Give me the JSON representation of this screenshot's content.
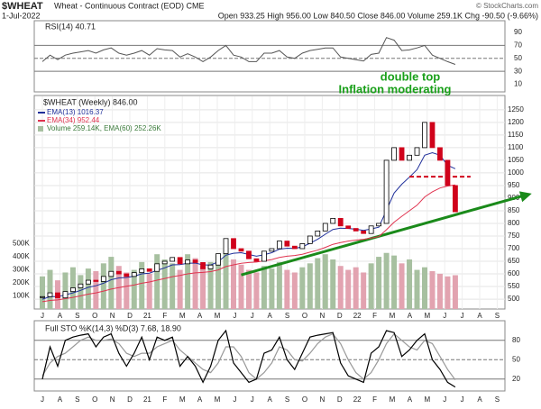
{
  "header": {
    "symbol": "$WHEAT",
    "name": "Wheat - Continuous Contract (EOD) CME",
    "date": "1-Jul-2022",
    "quote": "Open 933.25 High 956.00 Low 840.50 Close 846.00 Volume 259.1K Chg -90.50 (-9.66%)",
    "credit": "© StockCharts.com"
  },
  "chart_data": [
    {
      "type": "line",
      "legend": "RSI(14) 40.71",
      "color": "#555555",
      "values": [
        45,
        55,
        48,
        55,
        58,
        60,
        62,
        58,
        63,
        66,
        58,
        55,
        58,
        62,
        55,
        65,
        63,
        62,
        52,
        57,
        52,
        45,
        52,
        62,
        70,
        55,
        52,
        45,
        45,
        58,
        58,
        62,
        52,
        50,
        58,
        62,
        64,
        66,
        66,
        52,
        50,
        48,
        46,
        56,
        58,
        82,
        78,
        62,
        63,
        66,
        70,
        55,
        50,
        45,
        40.71
      ],
      "ylim": [
        -1,
        108
      ],
      "yticks": [
        10,
        30,
        50,
        70,
        90
      ],
      "levels": [
        30,
        50,
        70
      ]
    },
    {
      "type": "candlestick",
      "legend": "$WHEAT (Weekly) 846.00",
      "up_color": "#000000",
      "down_color": "#d0021b",
      "close": [
        510,
        525,
        505,
        530,
        545,
        560,
        575,
        570,
        590,
        610,
        600,
        590,
        605,
        620,
        610,
        640,
        650,
        665,
        640,
        655,
        645,
        620,
        635,
        680,
        740,
        700,
        690,
        660,
        650,
        690,
        700,
        730,
        710,
        700,
        720,
        750,
        770,
        800,
        820,
        790,
        780,
        770,
        760,
        790,
        800,
        1050,
        1100,
        1050,
        1070,
        1100,
        1200,
        1100,
        1050,
        950,
        846
      ],
      "ema": [
        {
          "name": "EMA(13) 1016.37",
          "color": "#1f2f9a",
          "values": [
            500,
            510,
            510,
            517,
            525,
            535,
            547,
            553,
            563,
            577,
            584,
            586,
            591,
            600,
            603,
            614,
            624,
            636,
            637,
            642,
            643,
            636,
            635,
            648,
            674,
            682,
            684,
            677,
            670,
            676,
            684,
            698,
            702,
            701,
            707,
            721,
            737,
            757,
            776,
            781,
            780,
            777,
            772,
            778,
            785,
            852,
            920,
            955,
            983,
            1013,
            1070,
            1080,
            1070,
            1030,
            1016.37
          ]
        },
        {
          "name": "EMA(34) 952.44",
          "color": "#e0334f",
          "values": [
            490,
            495,
            497,
            502,
            507,
            513,
            520,
            525,
            532,
            540,
            546,
            551,
            556,
            563,
            568,
            575,
            582,
            589,
            594,
            600,
            604,
            606,
            609,
            616,
            629,
            636,
            642,
            645,
            647,
            652,
            657,
            665,
            670,
            673,
            678,
            686,
            694,
            705,
            717,
            724,
            730,
            734,
            737,
            742,
            748,
            775,
            805,
            828,
            850,
            872,
            905,
            925,
            940,
            948,
            952.44
          ]
        }
      ],
      "volume": {
        "name": "Volume 259.14K, EMA(60) 252.26K",
        "up_color": "#a7c0a0",
        "down_color": "#e2a3b0",
        "values": [
          250,
          300,
          220,
          280,
          320,
          260,
          310,
          290,
          350,
          400,
          330,
          280,
          300,
          360,
          270,
          420,
          380,
          350,
          300,
          420,
          390,
          330,
          360,
          410,
          450,
          380,
          340,
          300,
          280,
          330,
          310,
          360,
          300,
          280,
          320,
          350,
          390,
          420,
          380,
          330,
          300,
          320,
          280,
          350,
          400,
          430,
          410,
          350,
          380,
          300,
          320,
          290,
          270,
          250,
          259.14
        ],
        "ylim": [
          0,
          1630
        ],
        "yticks": [
          {
            "value": 100,
            "label": "100K"
          },
          {
            "value": 200,
            "label": "200K"
          },
          {
            "value": 300,
            "label": "300K"
          },
          {
            "value": 400,
            "label": "400K"
          },
          {
            "value": 500,
            "label": "500K"
          }
        ]
      },
      "ylim": [
        461,
        1303
      ],
      "yticks": [
        500,
        550,
        600,
        650,
        700,
        750,
        800,
        850,
        900,
        950,
        1000,
        1050,
        1100,
        1150,
        1200,
        1250
      ],
      "x_labels": [
        "J",
        "A",
        "S",
        "O",
        "N",
        "D",
        "21",
        "F",
        "M",
        "A",
        "M",
        "J",
        "J",
        "A",
        "S",
        "O",
        "N",
        "D",
        "22",
        "F",
        "M",
        "A",
        "M",
        "J",
        "J",
        "A",
        "S"
      ],
      "annotations": [
        "double top",
        "Inflation moderating"
      ],
      "trendline": {
        "x": [
          26,
          64
        ],
        "y": [
          596,
          918
        ],
        "color": "#1a8a1a"
      },
      "resistance": {
        "x": [
          48,
          56
        ],
        "y": 985,
        "color": "#d0021b"
      }
    },
    {
      "type": "line",
      "legend": "Full STO %K(14,3) %D(3) 7.68, 18.90",
      "series": [
        {
          "name": "%K",
          "color": "#000000",
          "values": [
            20,
            70,
            40,
            80,
            85,
            88,
            90,
            70,
            85,
            90,
            60,
            40,
            60,
            85,
            50,
            85,
            80,
            85,
            40,
            55,
            40,
            15,
            40,
            80,
            95,
            45,
            30,
            15,
            20,
            60,
            65,
            85,
            50,
            35,
            60,
            85,
            88,
            90,
            92,
            45,
            25,
            20,
            15,
            60,
            70,
            95,
            92,
            55,
            65,
            80,
            90,
            50,
            35,
            15,
            7.68
          ]
        },
        {
          "name": "%D",
          "color": "#999999",
          "values": [
            25,
            45,
            55,
            60,
            70,
            80,
            85,
            80,
            80,
            82,
            75,
            60,
            55,
            60,
            60,
            70,
            75,
            80,
            65,
            55,
            45,
            35,
            30,
            45,
            70,
            70,
            55,
            30,
            20,
            30,
            45,
            70,
            65,
            50,
            48,
            60,
            75,
            85,
            90,
            75,
            50,
            30,
            20,
            30,
            50,
            75,
            90,
            80,
            70,
            65,
            80,
            75,
            55,
            35,
            18.9
          ]
        }
      ],
      "ylim": [
        3,
        109
      ],
      "yticks": [
        20,
        50,
        80
      ],
      "x_labels": [
        "J",
        "A",
        "S",
        "O",
        "N",
        "D",
        "21",
        "F",
        "M",
        "A",
        "M",
        "J",
        "J",
        "A",
        "S",
        "O",
        "N",
        "D",
        "22",
        "F",
        "M",
        "A",
        "M",
        "J",
        "J",
        "A",
        "S"
      ]
    }
  ]
}
